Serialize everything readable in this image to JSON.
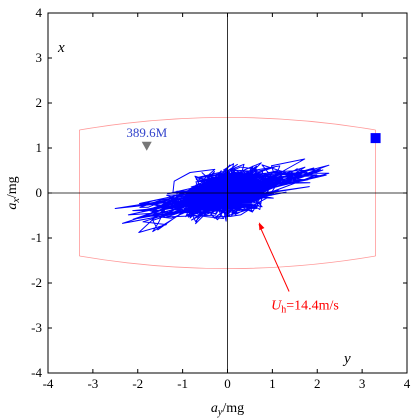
{
  "chart_data": {
    "type": "scatter",
    "title": "",
    "xlabel": {
      "main": "a",
      "sub": "y",
      "unit": "/mg"
    },
    "ylabel": {
      "main": "a",
      "sub": "x",
      "unit": "/mg"
    },
    "xlim": [
      -4,
      4
    ],
    "ylim": [
      -4,
      4
    ],
    "xticks": [
      "-4",
      "-3",
      "-2",
      "-1",
      "0",
      "1",
      "2",
      "3",
      "4"
    ],
    "yticks": [
      "-4",
      "-3",
      "-2",
      "-1",
      "0",
      "1",
      "2",
      "3",
      "4"
    ],
    "grid": false,
    "corner_labels": {
      "top_left": "x",
      "bottom_right": "y"
    },
    "series": [
      {
        "description_color": "#0000ff",
        "style": "line",
        "orbit_extent": {
          "x": [
            -2.95,
            3.0
          ],
          "y": [
            -1.2,
            1.05
          ]
        }
      }
    ],
    "reference_boundary": {
      "color": "#ff9999",
      "x": [
        -3.3,
        3.3
      ],
      "y_top": [
        1.4,
        1.68
      ],
      "y_bottom": [
        -1.4,
        -1.68
      ]
    },
    "markers": [
      {
        "kind": "triangle-down",
        "x": -1.8,
        "y": 1.05,
        "color": "#777777",
        "label": "389.6M",
        "label_color": "#3344cc"
      },
      {
        "kind": "square",
        "x": 3.3,
        "y": 1.22,
        "color": "#0000ff"
      }
    ],
    "annotation": {
      "text_main": "U",
      "text_sub": "h",
      "text_rest": "=14.4m/s",
      "color": "#ff0000",
      "text_at": [
        1.15,
        -2.5
      ],
      "arrow_to": [
        0.7,
        -0.65
      ]
    }
  }
}
